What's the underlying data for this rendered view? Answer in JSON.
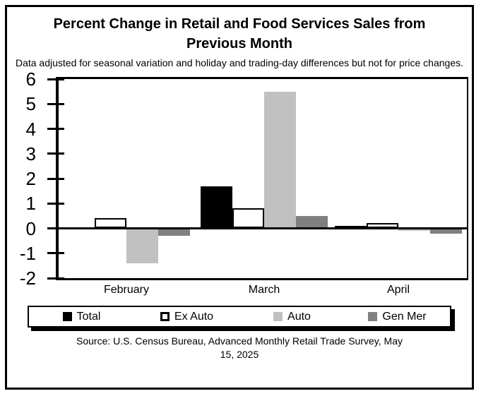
{
  "chart_data": {
    "type": "bar",
    "title": "Percent Change in Retail and Food Services Sales from Previous Month",
    "subtitle": "Data adjusted for seasonal variation and holiday and trading-day differences but not for price changes.",
    "source": "Source: U.S. Census Bureau, Advanced Monthly Retail Trade Survey, May 15, 2025",
    "categories": [
      "February",
      "March",
      "April"
    ],
    "series": [
      {
        "name": "Total",
        "color": "#000000",
        "values": [
          0.0,
          1.7,
          0.1
        ]
      },
      {
        "name": "Ex Auto",
        "color": "#ffffff",
        "border_color": "#000000",
        "values": [
          0.4,
          0.8,
          0.2
        ]
      },
      {
        "name": "Auto",
        "color": "#c0c0c0",
        "values": [
          -1.4,
          5.5,
          -0.1
        ]
      },
      {
        "name": "Gen Mer",
        "color": "#808080",
        "values": [
          -0.3,
          0.5,
          -0.2
        ]
      }
    ],
    "ylim": [
      -2,
      6
    ],
    "yticks": [
      6,
      5,
      4,
      3,
      2,
      1,
      0,
      -1,
      -2
    ],
    "grid": false,
    "legend_position": "bottom"
  }
}
